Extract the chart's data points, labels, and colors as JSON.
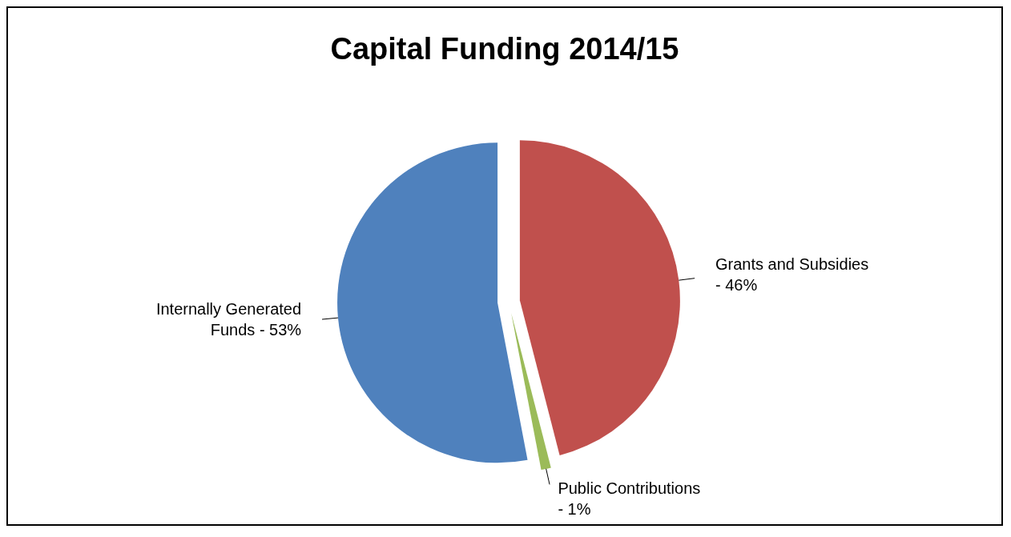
{
  "chart_data": {
    "type": "pie",
    "title": "Capital Funding 2014/15",
    "categories": [
      "Grants and Subsidies -",
      "Public Contributions -",
      "Internally Generated Funds -"
    ],
    "values": [
      46,
      1,
      53
    ],
    "value_labels": [
      "46%",
      "1%",
      "53%"
    ],
    "colors": [
      "#c0504d",
      "#9bbb59",
      "#4f81bd"
    ]
  }
}
